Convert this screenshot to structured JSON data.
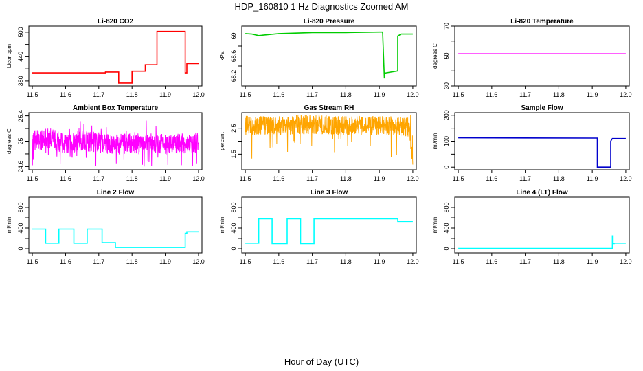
{
  "figure": {
    "title": "HDP_160810  1 Hz Diagnostics Zoomed AM",
    "xlabel": "Hour of Day (UTC)"
  },
  "chart_data": [
    {
      "type": "line",
      "title": "Li-820 CO2",
      "ylabel": "Licor ppm",
      "color": "#ff0000",
      "xlim": [
        11.5,
        12.0
      ],
      "ylim": [
        368,
        515
      ],
      "xticks": [
        "11.5",
        "11.6",
        "11.7",
        "11.8",
        "11.9",
        "12.0"
      ],
      "yticks": [
        380,
        440,
        500
      ],
      "yticks_minor": [
        410,
        470
      ],
      "series": [
        {
          "x": [
            11.5,
            11.72,
            11.72,
            11.76,
            11.76,
            11.8,
            11.8,
            11.84,
            11.84,
            11.875,
            11.875,
            11.96,
            11.96,
            11.965,
            11.965,
            12.0
          ],
          "y": [
            400,
            400,
            402,
            402,
            375,
            375,
            404,
            404,
            420,
            420,
            502,
            502,
            400,
            400,
            423,
            423
          ]
        }
      ]
    },
    {
      "type": "line",
      "title": "Li-820 Pressure",
      "ylabel": "kPa",
      "color": "#00cc00",
      "xlim": [
        11.5,
        12.0
      ],
      "ylim": [
        68.0,
        69.2
      ],
      "xticks": [
        "11.5",
        "11.6",
        "11.7",
        "11.8",
        "11.9",
        "12.0"
      ],
      "yticks": [
        68.2,
        68.6,
        69.0
      ],
      "yticks_minor": [
        68.4,
        68.8
      ],
      "series": [
        {
          "x": [
            11.5,
            11.52,
            11.54,
            11.6,
            11.7,
            11.8,
            11.9,
            11.91,
            11.915,
            11.915,
            11.92,
            11.955,
            11.955,
            11.965,
            11.965,
            12.0
          ],
          "y": [
            69.05,
            69.04,
            69.01,
            69.05,
            69.07,
            69.07,
            69.08,
            69.08,
            68.15,
            68.25,
            68.26,
            68.3,
            69.0,
            69.04,
            69.04,
            69.04
          ]
        }
      ]
    },
    {
      "type": "line",
      "title": "Li-820 Temperature",
      "ylabel": "degrees C",
      "color": "#ff00ff",
      "xlim": [
        11.5,
        12.0
      ],
      "ylim": [
        30,
        70
      ],
      "xticks": [
        "11.5",
        "11.6",
        "11.7",
        "11.8",
        "11.9",
        "12.0"
      ],
      "yticks": [
        30,
        50,
        70
      ],
      "yticks_minor": [
        40,
        60
      ],
      "series": [
        {
          "x": [
            11.5,
            12.0
          ],
          "y": [
            51.5,
            51.5
          ]
        }
      ]
    },
    {
      "type": "line",
      "title": "Ambient Box Temperature",
      "ylabel": "degrees C",
      "color": "#ff00ff",
      "xlim": [
        11.5,
        12.0
      ],
      "ylim": [
        24.55,
        25.45
      ],
      "xticks": [
        "11.5",
        "11.6",
        "11.7",
        "11.8",
        "11.9",
        "12.0"
      ],
      "yticks": [
        24.6,
        25.0,
        25.4
      ],
      "yticks_minor": [
        24.8,
        25.2
      ],
      "series": [
        {
          "x": [
            11.5,
            11.55,
            11.6,
            11.65,
            11.7,
            11.75,
            11.8,
            11.85,
            11.9,
            11.95,
            12.0
          ],
          "y": [
            25.0,
            25.05,
            24.95,
            25.0,
            24.98,
            24.95,
            24.97,
            24.96,
            24.95,
            24.96,
            24.97
          ],
          "noise_range": [
            24.6,
            25.35
          ]
        }
      ]
    },
    {
      "type": "line",
      "title": "Gas Stream RH",
      "ylabel": "percent",
      "color": "#ffa500",
      "xlim": [
        11.5,
        12.0
      ],
      "ylim": [
        0.9,
        3.1
      ],
      "xticks": [
        "11.5",
        "11.6",
        "11.7",
        "11.8",
        "11.9",
        "12.0"
      ],
      "yticks": [
        1.5,
        2.5
      ],
      "yticks_minor": [
        2.0
      ],
      "series": [
        {
          "x": [
            11.5,
            11.6,
            11.7,
            11.8,
            11.9,
            11.99,
            12.0
          ],
          "y": [
            2.6,
            2.6,
            2.65,
            2.6,
            2.6,
            2.55,
            1.1
          ],
          "noise_range": [
            1.3,
            3.0
          ]
        }
      ]
    },
    {
      "type": "line",
      "title": "Sample Flow",
      "ylabel": "ml/min",
      "color": "#0000cc",
      "xlim": [
        11.5,
        12.0
      ],
      "ylim": [
        -10,
        210
      ],
      "xticks": [
        "11.5",
        "11.6",
        "11.7",
        "11.8",
        "11.9",
        "12.0"
      ],
      "yticks": [
        0,
        100,
        200
      ],
      "yticks_minor": [
        50,
        150
      ],
      "series": [
        {
          "x": [
            11.5,
            11.91,
            11.915,
            11.915,
            11.955,
            11.955,
            11.96,
            12.0
          ],
          "y": [
            113,
            112,
            112,
            0,
            0,
            100,
            110,
            110
          ]
        }
      ]
    },
    {
      "type": "line",
      "title": "Line 2 Flow",
      "ylabel": "ml/min",
      "color": "#00ffff",
      "xlim": [
        11.5,
        12.0
      ],
      "ylim": [
        -80,
        1000
      ],
      "xticks": [
        "11.5",
        "11.6",
        "11.7",
        "11.8",
        "11.9",
        "12.0"
      ],
      "yticks": [
        0,
        400,
        800
      ],
      "yticks_minor": [
        200,
        600
      ],
      "series": [
        {
          "x": [
            11.5,
            11.54,
            11.54,
            11.58,
            11.58,
            11.625,
            11.625,
            11.665,
            11.665,
            11.71,
            11.71,
            11.75,
            11.75,
            11.96,
            11.96,
            11.965,
            11.965,
            12.0
          ],
          "y": [
            380,
            380,
            110,
            110,
            380,
            380,
            110,
            110,
            380,
            380,
            120,
            120,
            25,
            25,
            300,
            300,
            330,
            330
          ]
        }
      ]
    },
    {
      "type": "line",
      "title": "Line 3 Flow",
      "ylabel": "ml/min",
      "color": "#00ffff",
      "xlim": [
        11.5,
        12.0
      ],
      "ylim": [
        -80,
        1000
      ],
      "xticks": [
        "11.5",
        "11.6",
        "11.7",
        "11.8",
        "11.9",
        "12.0"
      ],
      "yticks": [
        0,
        400,
        800
      ],
      "yticks_minor": [
        200,
        600
      ],
      "series": [
        {
          "x": [
            11.5,
            11.54,
            11.54,
            11.58,
            11.58,
            11.625,
            11.625,
            11.665,
            11.665,
            11.705,
            11.705,
            11.955,
            11.955,
            12.0
          ],
          "y": [
            110,
            110,
            580,
            580,
            100,
            100,
            580,
            580,
            100,
            100,
            580,
            580,
            530,
            530
          ]
        }
      ]
    },
    {
      "type": "line",
      "title": "Line 4 (LT) Flow",
      "ylabel": "ml/min",
      "color": "#00ffff",
      "xlim": [
        11.5,
        12.0
      ],
      "ylim": [
        -80,
        1000
      ],
      "xticks": [
        "11.5",
        "11.6",
        "11.7",
        "11.8",
        "11.9",
        "12.0"
      ],
      "yticks": [
        0,
        400,
        800
      ],
      "yticks_minor": [
        200,
        600
      ],
      "series": [
        {
          "x": [
            11.5,
            11.96,
            11.96,
            11.962,
            11.962,
            11.965,
            11.965,
            12.0
          ],
          "y": [
            5,
            5,
            250,
            250,
            100,
            100,
            110,
            110
          ]
        }
      ]
    }
  ]
}
